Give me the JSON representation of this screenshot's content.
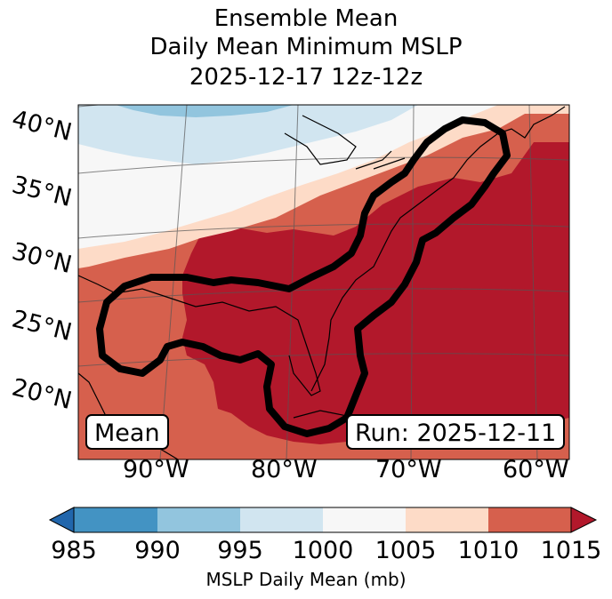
{
  "title": {
    "line1": "Ensemble Mean",
    "line2": "Daily Mean Minimum MSLP",
    "line3": "2025-12-17 12z-12z"
  },
  "map": {
    "lat_labels": [
      "40°N",
      "35°N",
      "30°N",
      "25°N",
      "20°N"
    ],
    "lon_labels": [
      "90°W",
      "80°W",
      "70°W",
      "60°W"
    ],
    "mean_label": "Mean",
    "run_label": "Run: 2025-12-11",
    "field_description": "MSLP daily mean minimum, ensemble mean"
  },
  "colorbar": {
    "ticks": [
      "985",
      "990",
      "995",
      "1000",
      "1005",
      "1010",
      "1015"
    ],
    "label": "MSLP Daily Mean (mb)",
    "colors": [
      "#4393c3",
      "#92c5de",
      "#d1e5f0",
      "#f7f7f7",
      "#fddbc7",
      "#d6604d",
      "#b2182b"
    ],
    "under_color": "#2166ac",
    "over_color": "#b2182b"
  }
}
